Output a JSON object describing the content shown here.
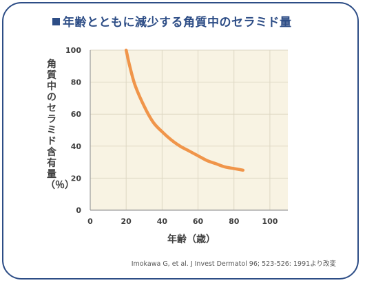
{
  "title": "年齢とともに減少する角質中のセラミド量",
  "source": "Imokawa G, et al. J Invest Dermatol 96; 523-526: 1991より改変",
  "colors": {
    "border": "#2d4d86",
    "title": "#2d4d86",
    "plot_bg": "#f8f3e3",
    "grid": "#ddd7c3",
    "line": "#f0954a",
    "axis_text": "#404040"
  },
  "chart_data": {
    "type": "line",
    "title": "年齢とともに減少する角質中のセラミド量",
    "xlabel": "年齢（歳）",
    "ylabel": "角質中のセラミド含有量（％）",
    "xlim": [
      0,
      110
    ],
    "ylim": [
      0,
      100
    ],
    "xticks": [
      "0",
      "20",
      "40",
      "60",
      "80",
      "100"
    ],
    "yticks": [
      "0",
      "20",
      "40",
      "60",
      "80",
      "100"
    ],
    "grid": true,
    "series": [
      {
        "x": [
          20,
          22,
          25,
          30,
          35,
          40,
          45,
          50,
          55,
          60,
          65,
          70,
          75,
          80,
          85
        ],
        "y": [
          100,
          90,
          78,
          65,
          55,
          49,
          44,
          40,
          37,
          34,
          31,
          29,
          27,
          26,
          25
        ]
      }
    ]
  }
}
